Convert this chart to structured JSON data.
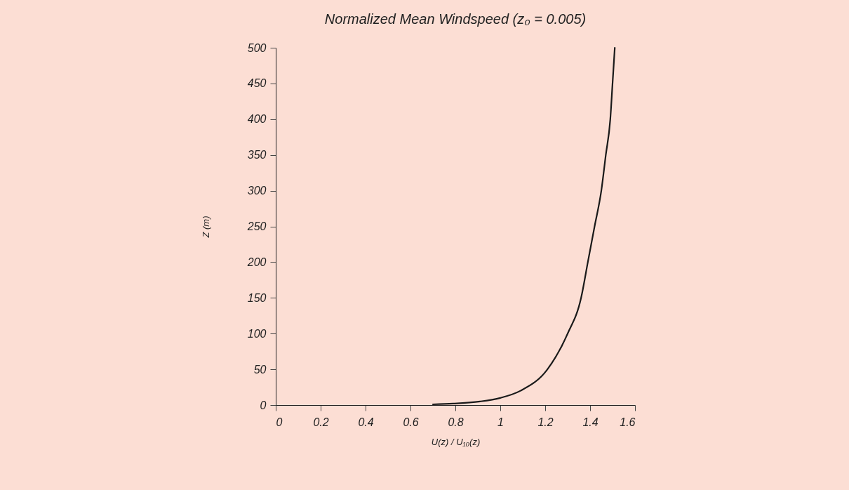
{
  "chart_data": {
    "type": "line",
    "title": "Normalized Mean Windspeed (z₀ = 0.005)",
    "xlabel": "U(z) / U₁₀(z)",
    "ylabel": "Z (m)",
    "x": [
      0.7,
      0.79,
      0.91,
      1.0,
      1.09,
      1.21,
      1.3,
      1.36,
      1.39,
      1.42,
      1.45,
      1.47,
      1.49,
      1.5,
      1.51
    ],
    "values": [
      1,
      2,
      5,
      10,
      20,
      50,
      100,
      150,
      200,
      250,
      300,
      350,
      400,
      450,
      500
    ],
    "color": "#1a1a1a",
    "xlim": [
      0,
      1.6
    ],
    "ylim": [
      0,
      500
    ],
    "xticks": [
      0,
      0.2,
      0.4,
      0.6,
      0.8,
      1,
      1.2,
      1.4,
      1.6
    ],
    "yticks": [
      0,
      50,
      100,
      150,
      200,
      250,
      300,
      350,
      400,
      450,
      500
    ]
  }
}
